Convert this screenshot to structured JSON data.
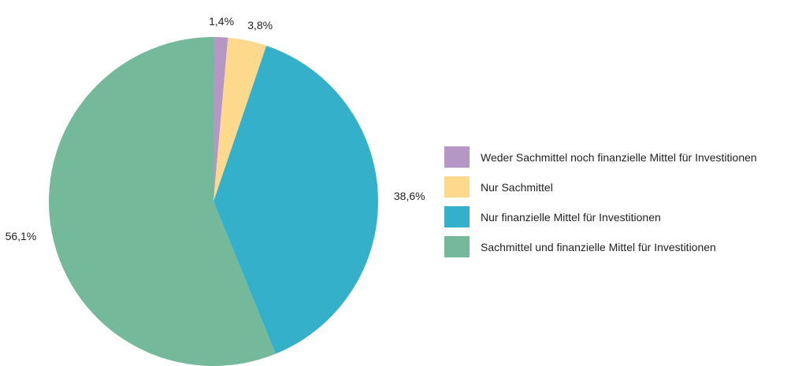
{
  "chart_data": {
    "type": "pie",
    "categories": [
      "Weder Sachmittel noch finanzielle Mittel für Investitionen",
      "Nur Sachmittel",
      "Nur finanzielle Mittel für Investitionen",
      "Sachmittel und finanzielle Mittel für Investitionen"
    ],
    "values": [
      1.4,
      3.8,
      38.6,
      56.1
    ],
    "value_labels": [
      "1,4%",
      "3,8%",
      "38,6%",
      "56,1%"
    ],
    "colors": [
      "#b696c4",
      "#fcd98c",
      "#35b0ca",
      "#73b99a"
    ],
    "legend_position": "right",
    "title": ""
  }
}
